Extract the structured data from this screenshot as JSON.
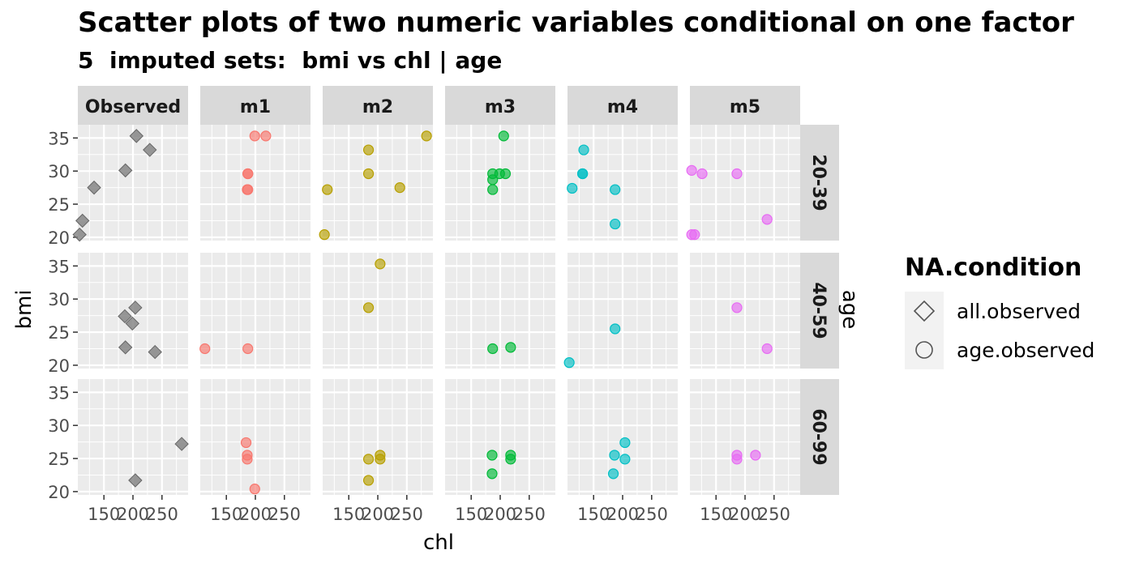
{
  "chart_data": {
    "type": "scatter",
    "title": "Scatter plots of two numeric variables conditional on one factor",
    "subtitle": "5  imputed sets:  bmi vs chl | age",
    "xlabel": "chl",
    "ylabel": "bmi",
    "facet_col_label": "age",
    "xlim": [
      105,
      295
    ],
    "ylim": [
      19.5,
      37
    ],
    "x_ticks": [
      150,
      200,
      250
    ],
    "y_ticks": [
      20,
      25,
      30,
      35
    ],
    "grid": true,
    "legend_position": "right",
    "columns": [
      "Observed",
      "m1",
      "m2",
      "m3",
      "m4",
      "m5"
    ],
    "rows": [
      "20-39",
      "40-59",
      "60-99"
    ],
    "colors": {
      "Observed": "#808080",
      "m1": "#F8766D",
      "m2": "#B79F00",
      "m3": "#00BA38",
      "m4": "#00BFC4",
      "m5": "#E76BF3"
    },
    "legend": {
      "title": "NA.condition",
      "items": [
        {
          "label": "all.observed",
          "shape": "diamond"
        },
        {
          "label": "age.observed",
          "shape": "circle"
        }
      ]
    },
    "panels": [
      {
        "column": "Observed",
        "row": "20-39",
        "points": [
          [
            108,
            20.4
          ],
          [
            113,
            22.5
          ],
          [
            133,
            27.5
          ],
          [
            187,
            30.1
          ],
          [
            206,
            35.3
          ],
          [
            229,
            33.2
          ]
        ]
      },
      {
        "column": "Observed",
        "row": "40-59",
        "points": [
          [
            187,
            22.7
          ],
          [
            186,
            27.4
          ],
          [
            199,
            26.3
          ],
          [
            204,
            28.7
          ],
          [
            238,
            22.0
          ]
        ]
      },
      {
        "column": "Observed",
        "row": "60-99",
        "points": [
          [
            204,
            21.7
          ],
          [
            284,
            27.2
          ]
        ]
      },
      {
        "column": "m1",
        "row": "20-39",
        "points": [
          [
            187,
            27.2
          ],
          [
            187,
            29.6
          ],
          [
            199,
            35.3
          ],
          [
            218,
            35.3
          ],
          [
            186,
            27.2
          ],
          [
            187,
            29.6
          ]
        ]
      },
      {
        "column": "m1",
        "row": "40-59",
        "points": [
          [
            113,
            22.5
          ],
          [
            187,
            22.5
          ]
        ]
      },
      {
        "column": "m1",
        "row": "60-99",
        "points": [
          [
            184,
            27.4
          ],
          [
            186,
            25.5
          ],
          [
            186,
            24.9
          ],
          [
            199,
            20.4
          ]
        ]
      },
      {
        "column": "m2",
        "row": "20-39",
        "points": [
          [
            108,
            20.4
          ],
          [
            113,
            27.2
          ],
          [
            184,
            29.6
          ],
          [
            184,
            33.2
          ],
          [
            238,
            27.5
          ],
          [
            284,
            35.3
          ]
        ]
      },
      {
        "column": "m2",
        "row": "40-59",
        "points": [
          [
            184,
            28.7
          ],
          [
            204,
            35.3
          ]
        ]
      },
      {
        "column": "m2",
        "row": "60-99",
        "points": [
          [
            184,
            21.7
          ],
          [
            184,
            24.9
          ],
          [
            204,
            25.5
          ],
          [
            204,
            24.9
          ]
        ]
      },
      {
        "column": "m3",
        "row": "20-39",
        "points": [
          [
            187,
            27.2
          ],
          [
            187,
            28.7
          ],
          [
            187,
            29.6
          ],
          [
            199,
            29.6
          ],
          [
            206,
            35.3
          ],
          [
            209,
            29.6
          ]
        ]
      },
      {
        "column": "m3",
        "row": "40-59",
        "points": [
          [
            187,
            22.5
          ],
          [
            218,
            22.7
          ]
        ]
      },
      {
        "column": "m3",
        "row": "60-99",
        "points": [
          [
            186,
            22.7
          ],
          [
            186,
            25.5
          ],
          [
            218,
            25.5
          ],
          [
            218,
            24.9
          ]
        ]
      },
      {
        "column": "m4",
        "row": "20-39",
        "points": [
          [
            113,
            27.4
          ],
          [
            131,
            29.6
          ],
          [
            133,
            33.2
          ],
          [
            131,
            29.6
          ],
          [
            187,
            27.2
          ],
          [
            187,
            22.0
          ]
        ]
      },
      {
        "column": "m4",
        "row": "40-59",
        "points": [
          [
            108,
            20.4
          ],
          [
            187,
            25.5
          ]
        ]
      },
      {
        "column": "m4",
        "row": "60-99",
        "points": [
          [
            184,
            22.7
          ],
          [
            186,
            25.5
          ],
          [
            204,
            27.4
          ],
          [
            204,
            24.9
          ]
        ]
      },
      {
        "column": "m5",
        "row": "20-39",
        "points": [
          [
            108,
            20.4
          ],
          [
            108,
            30.1
          ],
          [
            113,
            20.4
          ],
          [
            126,
            29.6
          ],
          [
            186,
            29.6
          ],
          [
            238,
            22.7
          ]
        ]
      },
      {
        "column": "m5",
        "row": "40-59",
        "points": [
          [
            186,
            28.7
          ],
          [
            238,
            22.5
          ]
        ]
      },
      {
        "column": "m5",
        "row": "60-99",
        "points": [
          [
            186,
            24.9
          ],
          [
            186,
            25.5
          ],
          [
            218,
            25.5
          ]
        ]
      }
    ]
  }
}
